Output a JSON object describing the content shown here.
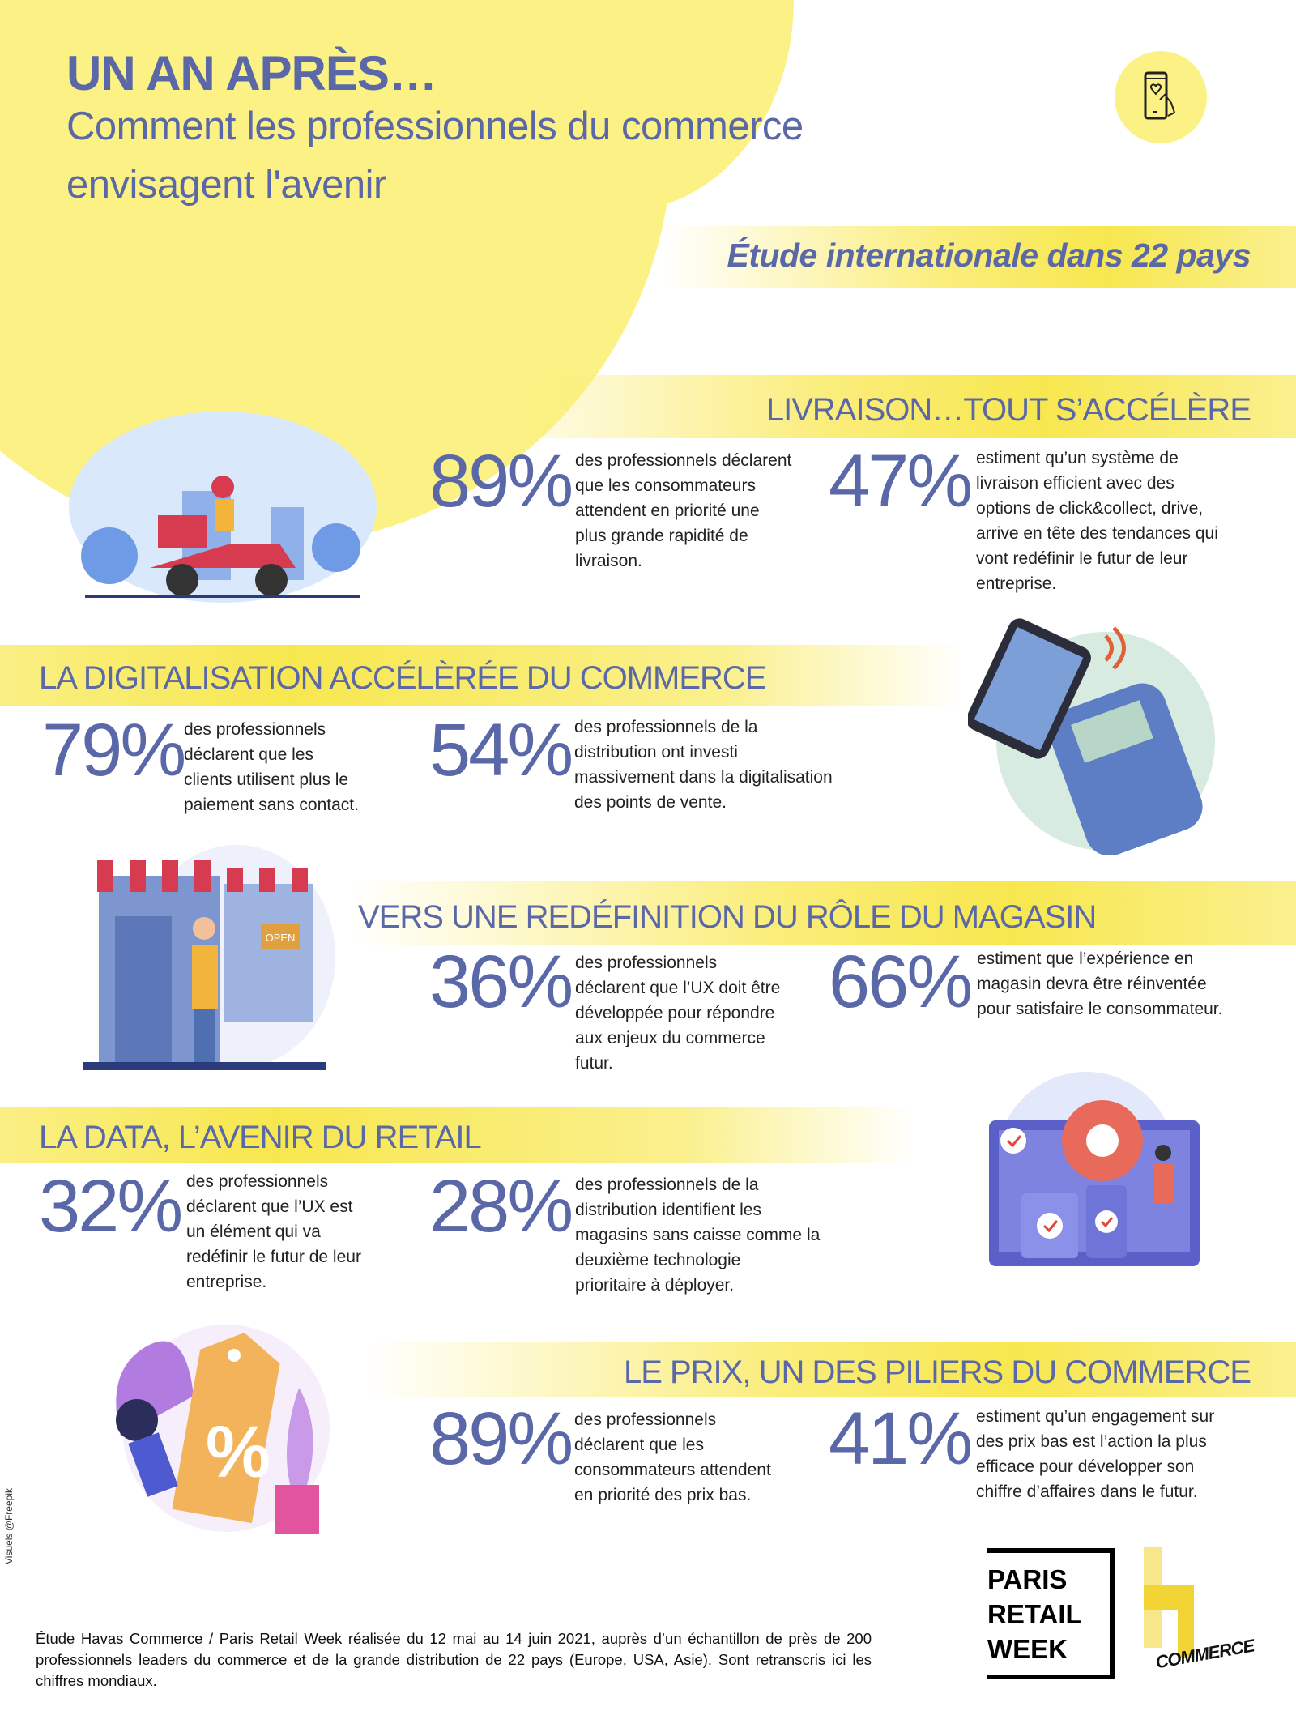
{
  "header": {
    "title": "UN AN APRÈS…",
    "subtitle_lines": [
      "Comment les professionnels du commerce",
      "envisagent l'avenir"
    ],
    "study_banner": "Étude internationale dans 22 pays",
    "icon": "phone-heart-touch-icon"
  },
  "colors": {
    "accent": "#5a68a8",
    "yellow": "#f7e74f",
    "text": "#222222"
  },
  "sections": [
    {
      "title": "LIVRAISON…TOUT S’ACCÉLÈRE",
      "illustration": "delivery-scooter-illustration",
      "stats": [
        {
          "value": "89%",
          "lines": [
            "des professionnels déclarent",
            "que les consommateurs",
            "attendent en priorité une",
            "plus grande rapidité de",
            "livraison."
          ]
        },
        {
          "value": "47%",
          "lines": [
            "estiment qu’un système de",
            "livraison efficient avec des",
            "options de click&collect, drive,",
            "arrive en tête des tendances qui",
            "vont redéfinir le futur de leur",
            "entreprise."
          ]
        }
      ]
    },
    {
      "title": "LA DIGITALISATION ACCÉLÈRÉE DU COMMERCE",
      "illustration": "contactless-payment-terminal-illustration",
      "stats": [
        {
          "value": "79%",
          "lines": [
            "des professionnels",
            "déclarent que les",
            "clients utilisent plus le",
            "paiement sans contact."
          ]
        },
        {
          "value": "54%",
          "lines": [
            "des professionnels de la",
            "distribution ont investi",
            "massivement dans la digitalisation",
            "des points de vente."
          ]
        }
      ]
    },
    {
      "title": "VERS UNE REDÉFINITION DU RÔLE DU MAGASIN",
      "illustration": "open-store-shopkeeper-illustration",
      "store_sign": "OPEN",
      "stats": [
        {
          "value": "36%",
          "lines": [
            "des professionnels",
            "déclarent que l’UX doit être",
            "développée pour répondre",
            "aux enjeux du commerce",
            "futur."
          ]
        },
        {
          "value": "66%",
          "lines": [
            "estiment que l’expérience en",
            "magasin devra être réinventée",
            "pour satisfaire le consommateur."
          ]
        }
      ]
    },
    {
      "title": "LA DATA, L’AVENIR DU RETAIL",
      "illustration": "data-devices-gear-illustration",
      "stats": [
        {
          "value": "32%",
          "lines": [
            "des professionnels",
            "déclarent que l’UX est",
            "un élément qui va",
            "redéfinir le futur de leur",
            "entreprise."
          ]
        },
        {
          "value": "28%",
          "lines": [
            "des professionnels de la",
            "distribution identifient les",
            "magasins sans caisse comme la",
            "deuxième technologie",
            "prioritaire à déployer."
          ]
        }
      ]
    },
    {
      "title": "LE PRIX, UN DES PILIERS DU COMMERCE",
      "illustration": "discount-tag-shopper-illustration",
      "stats": [
        {
          "value": "89%",
          "lines": [
            "des professionnels",
            "déclarent que les",
            "consommateurs attendent",
            "en priorité des prix bas."
          ]
        },
        {
          "value": "41%",
          "lines": [
            "estiment qu’un engagement sur",
            "des prix bas est l’action la plus",
            "efficace pour développer son",
            "chiffre d’affaires dans le futur."
          ]
        }
      ]
    }
  ],
  "credit": "Visuels @Freepik",
  "footer": "Étude Havas Commerce / Paris Retail Week réalisée du 12 mai au 14 juin 2021, auprès d’un échantillon de près de 200 professionnels leaders du commerce et de la grande distribution de 22 pays (Europe, USA, Asie). Sont retranscris ici les chiffres mondiaux.",
  "logos": {
    "paris_retail_week": [
      "PARIS",
      "RETAIL",
      "WEEK"
    ],
    "havas_commerce": "COMMERCE"
  }
}
